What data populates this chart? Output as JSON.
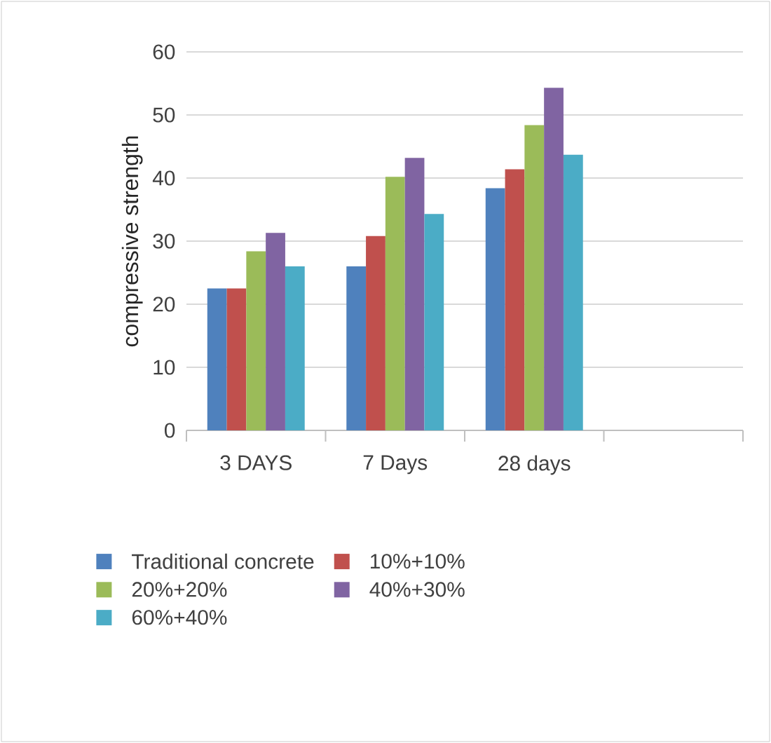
{
  "chart_data": {
    "type": "bar",
    "ylabel": "compressive strength",
    "categories": [
      "3 DAYS",
      "7 Days",
      "28 days",
      null
    ],
    "series": [
      {
        "name": "Traditional concrete",
        "color": "#4f81bd",
        "values": [
          22.5,
          26.0,
          38.4,
          null
        ]
      },
      {
        "name": "10%+10%",
        "color": "#c0504d",
        "values": [
          22.5,
          30.8,
          41.4,
          null
        ]
      },
      {
        "name": "20%+20%",
        "color": "#9bbb59",
        "values": [
          28.4,
          40.2,
          48.4,
          null
        ]
      },
      {
        "name": "40%+30%",
        "color": "#8064a2",
        "values": [
          31.3,
          43.2,
          54.3,
          null
        ]
      },
      {
        "name": "60%+40%",
        "color": "#4bacc6",
        "values": [
          26.0,
          34.3,
          43.7,
          null
        ]
      }
    ],
    "ylim": [
      0,
      60
    ],
    "yticks": [
      0,
      10,
      20,
      30,
      40,
      50,
      60
    ],
    "grid": "y",
    "legend": "bottom"
  }
}
